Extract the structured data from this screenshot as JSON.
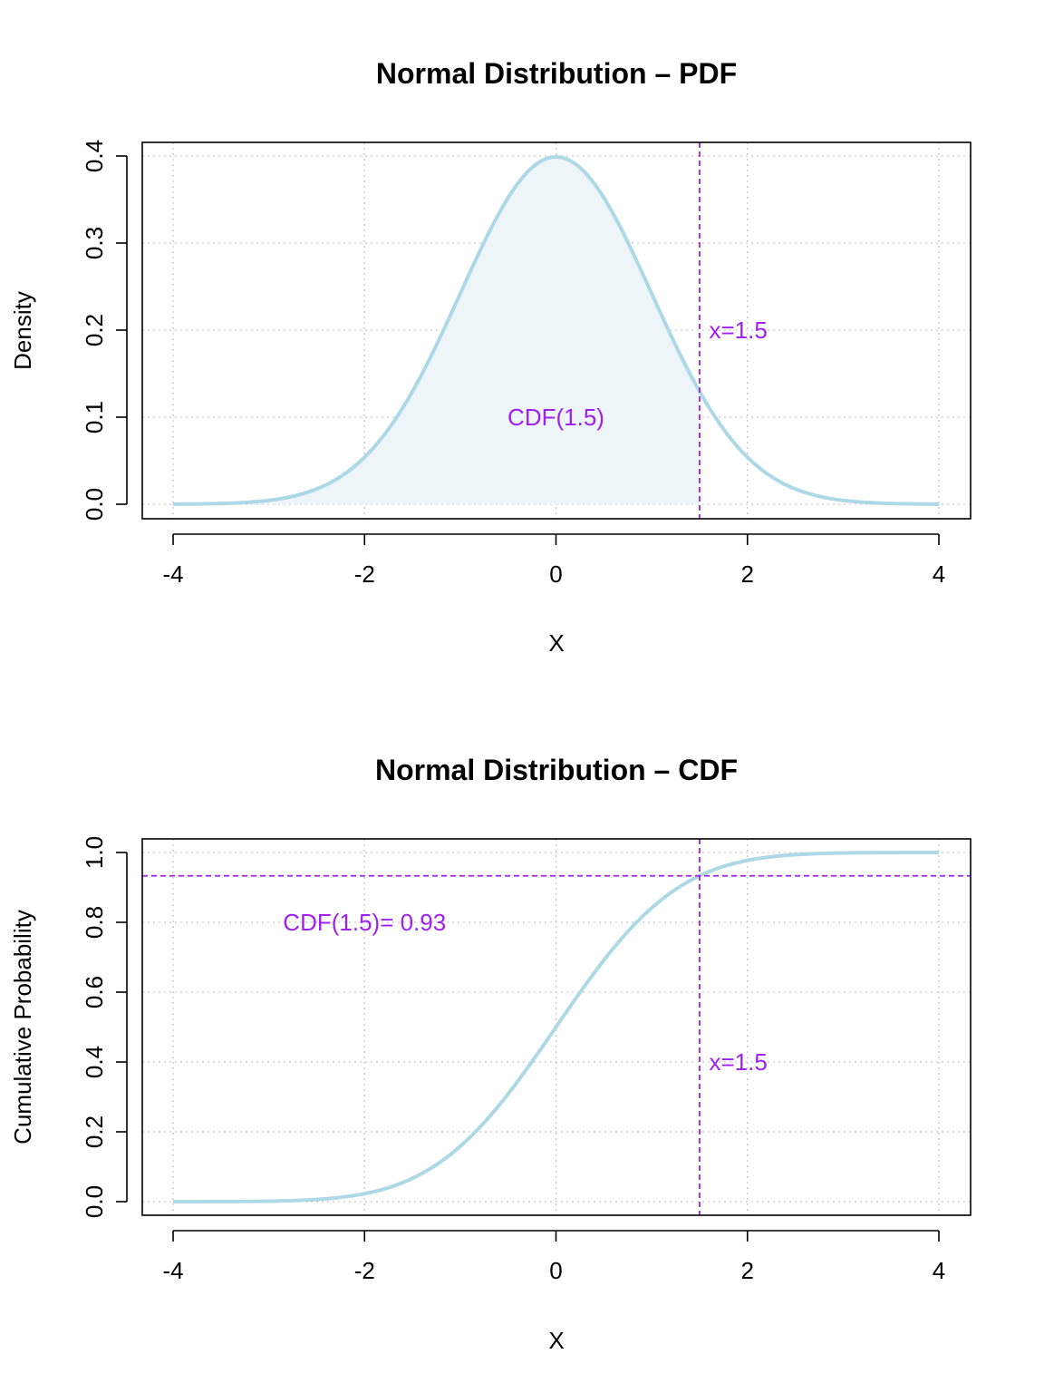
{
  "colors": {
    "curve": "#add8e6",
    "fill": "#edf5f9",
    "annotation": "#a020f0",
    "grid": "#c8c8c8"
  },
  "chart_data": [
    {
      "type": "area",
      "title": "Normal Distribution – PDF",
      "xlabel": "X",
      "ylabel": "Density",
      "xlim": [
        -4,
        4
      ],
      "ylim": [
        0,
        0.4
      ],
      "xticks": [
        -4,
        -2,
        0,
        2,
        4
      ],
      "yticks": [
        0.0,
        0.1,
        0.2,
        0.3,
        0.4
      ],
      "xtick_labels": [
        "-4",
        "-2",
        "0",
        "2",
        "4"
      ],
      "ytick_labels": [
        "0.0",
        "0.1",
        "0.2",
        "0.3",
        "0.4"
      ],
      "grid": true,
      "function": "normal pdf (mean 0, sd 1)",
      "x": [
        -4.0,
        -3.5,
        -3.0,
        -2.5,
        -2.0,
        -1.5,
        -1.0,
        -0.5,
        0.0,
        0.5,
        1.0,
        1.5,
        2.0,
        2.5,
        3.0,
        3.5,
        4.0
      ],
      "y": [
        0.0001,
        0.0009,
        0.0044,
        0.0175,
        0.054,
        0.1295,
        0.242,
        0.3521,
        0.3989,
        0.3521,
        0.242,
        0.1295,
        0.054,
        0.0175,
        0.0044,
        0.0009,
        0.0001
      ],
      "shade_to": 1.5,
      "vline": 1.5,
      "annotations": [
        {
          "text": "x=1.5",
          "x": 1.6,
          "y": 0.2
        },
        {
          "text": "CDF(1.5)",
          "x": 0,
          "y": 0.1
        }
      ]
    },
    {
      "type": "line",
      "title": "Normal Distribution – CDF",
      "xlabel": "X",
      "ylabel": "Cumulative Probability",
      "xlim": [
        -4,
        4
      ],
      "ylim": [
        0,
        1.0
      ],
      "xticks": [
        -4,
        -2,
        0,
        2,
        4
      ],
      "yticks": [
        0.0,
        0.2,
        0.4,
        0.6,
        0.8,
        1.0
      ],
      "xtick_labels": [
        "-4",
        "-2",
        "0",
        "2",
        "4"
      ],
      "ytick_labels": [
        "0.0",
        "0.2",
        "0.4",
        "0.6",
        "0.8",
        "1.0"
      ],
      "grid": true,
      "function": "normal cdf (mean 0, sd 1)",
      "x": [
        -4.0,
        -3.5,
        -3.0,
        -2.5,
        -2.0,
        -1.5,
        -1.0,
        -0.5,
        0.0,
        0.5,
        1.0,
        1.5,
        2.0,
        2.5,
        3.0,
        3.5,
        4.0
      ],
      "y": [
        0.0,
        0.0002,
        0.0013,
        0.0062,
        0.0228,
        0.0668,
        0.1587,
        0.3085,
        0.5,
        0.6915,
        0.8413,
        0.9332,
        0.9772,
        0.9938,
        0.9987,
        0.9998,
        1.0
      ],
      "vline": 1.5,
      "hline": 0.9332,
      "annotations": [
        {
          "text": "x=1.5",
          "x": 1.6,
          "y": 0.4
        },
        {
          "text": "CDF(1.5)= 0.93",
          "x": -2,
          "y": 0.8
        }
      ]
    }
  ]
}
